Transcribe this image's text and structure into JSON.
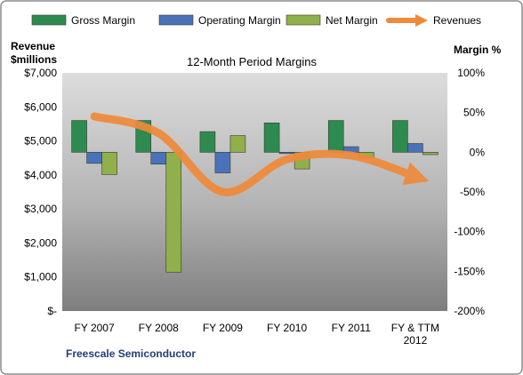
{
  "chart_data": {
    "type": "bar",
    "title": "12-Month Period Margins",
    "company": "Freescale Semiconductor",
    "left_axis": {
      "label_line1": "Revenue",
      "label_line2": "$millions",
      "ylim": [
        0,
        7000
      ],
      "tick_values": [
        0,
        1000,
        2000,
        3000,
        4000,
        5000,
        6000,
        7000
      ],
      "tick_labels": [
        "$-",
        "$1,000",
        "$2,000",
        "$3,000",
        "$4,000",
        "$5,000",
        "$6,000",
        "$7,000"
      ]
    },
    "right_axis": {
      "label": "Margin %",
      "ylim": [
        -200,
        100
      ],
      "tick_values": [
        -200,
        -150,
        -100,
        -50,
        0,
        50,
        100
      ],
      "tick_labels": [
        "-200%",
        "-150%",
        "-100%",
        "-50%",
        "0%",
        "50%",
        "100%"
      ]
    },
    "categories": [
      "FY 2007",
      "FY 2008",
      "FY 2009",
      "FY 2010",
      "FY 2011",
      "FY & TTM 2012"
    ],
    "series": [
      {
        "name": "Gross Margin",
        "axis": "right",
        "color": "#2e8b4f",
        "values": [
          40,
          40,
          26,
          37,
          40,
          40
        ]
      },
      {
        "name": "Operating Margin",
        "axis": "right",
        "color": "#4a72b8",
        "values": [
          -14,
          -15,
          -26,
          0,
          7,
          11
        ]
      },
      {
        "name": "Net Margin",
        "axis": "right",
        "color": "#8fb04a",
        "values": [
          -28,
          -151,
          21,
          -21,
          -7,
          -3
        ]
      }
    ],
    "line_series": {
      "name": "Revenues",
      "axis": "left",
      "color": "#ef8a3a",
      "values": [
        5720,
        5230,
        3500,
        4460,
        4570,
        3950
      ]
    },
    "legend_position": "top",
    "grid": false
  }
}
